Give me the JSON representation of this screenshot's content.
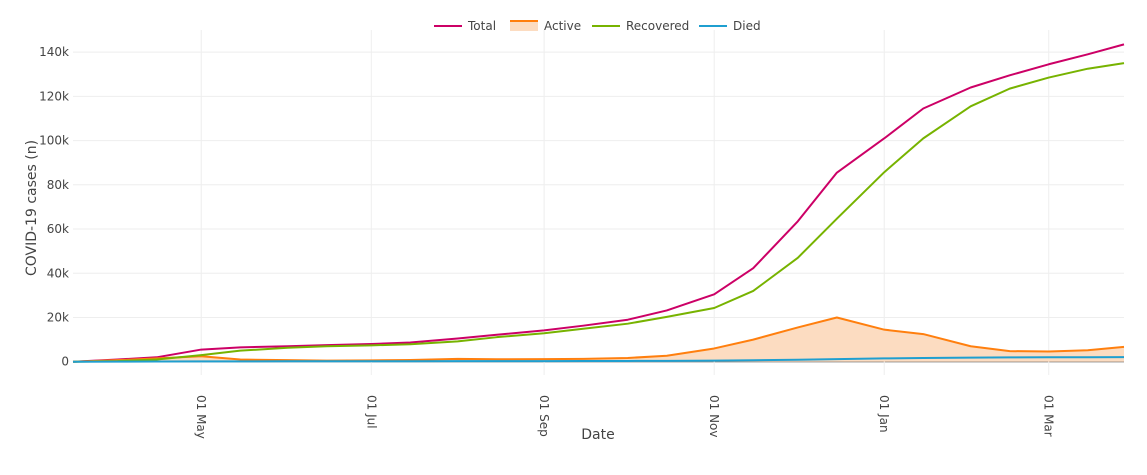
{
  "chart_data": {
    "type": "line",
    "xlabel": "Date",
    "ylabel": "COVID-19 cases (n)",
    "x_range": [
      "2020-03-16",
      "2021-03-28"
    ],
    "ylim": [
      -6000,
      150000
    ],
    "y_ticks": [
      0,
      20000,
      40000,
      60000,
      80000,
      100000,
      120000,
      140000
    ],
    "y_tick_labels": [
      "0",
      "20k",
      "40k",
      "60k",
      "80k",
      "100k",
      "120k",
      "140k"
    ],
    "x_ticks": [
      "2020-05-01",
      "2020-07-01",
      "2020-09-01",
      "2020-11-01",
      "2021-01-01",
      "2021-03-01"
    ],
    "x_tick_labels": [
      "01 May",
      "01 Jul",
      "01 Sep",
      "01 Nov",
      "01 Jan",
      "01 Mar"
    ],
    "grid": true,
    "legend_position": "top-center",
    "x": [
      "2020-03-16",
      "2020-04-01",
      "2020-04-15",
      "2020-05-01",
      "2020-05-15",
      "2020-06-01",
      "2020-06-15",
      "2020-07-01",
      "2020-07-15",
      "2020-08-01",
      "2020-08-15",
      "2020-09-01",
      "2020-09-15",
      "2020-10-01",
      "2020-10-15",
      "2020-11-01",
      "2020-11-15",
      "2020-12-01",
      "2020-12-15",
      "2021-01-01",
      "2021-01-15",
      "2021-02-01",
      "2021-02-15",
      "2021-03-01",
      "2021-03-15",
      "2021-03-28"
    ],
    "series": [
      {
        "name": "Total",
        "color": "#cc0066",
        "values": [
          0,
          1000,
          2000,
          5500,
          6500,
          7000,
          7500,
          8000,
          8700,
          10500,
          12200,
          14200,
          16300,
          19000,
          23200,
          30500,
          42300,
          63500,
          85500,
          101000,
          114500,
          124000,
          129500,
          134500,
          139000,
          143500
        ]
      },
      {
        "name": "Active",
        "color": "#ff7f0e",
        "area": true,
        "fill": "#fcdcc1",
        "values": [
          0,
          700,
          1500,
          2500,
          1000,
          700,
          500,
          600,
          800,
          1300,
          1100,
          1200,
          1300,
          1700,
          2700,
          6000,
          10000,
          15500,
          20000,
          14500,
          12500,
          7000,
          4800,
          4600,
          5200,
          6700
        ]
      },
      {
        "name": "Recovered",
        "color": "#77b300",
        "values": [
          0,
          300,
          1000,
          3000,
          5000,
          6300,
          7000,
          7400,
          7900,
          9200,
          11100,
          12900,
          14900,
          17200,
          20300,
          24300,
          32000,
          47000,
          64700,
          85700,
          101000,
          115500,
          123500,
          128500,
          132500,
          135000
        ]
      },
      {
        "name": "Died",
        "color": "#1f9fd0",
        "values": [
          0,
          20,
          80,
          150,
          180,
          200,
          210,
          220,
          240,
          260,
          280,
          300,
          320,
          350,
          400,
          500,
          650,
          900,
          1200,
          1500,
          1700,
          1850,
          1950,
          2000,
          2050,
          2100
        ]
      }
    ]
  }
}
